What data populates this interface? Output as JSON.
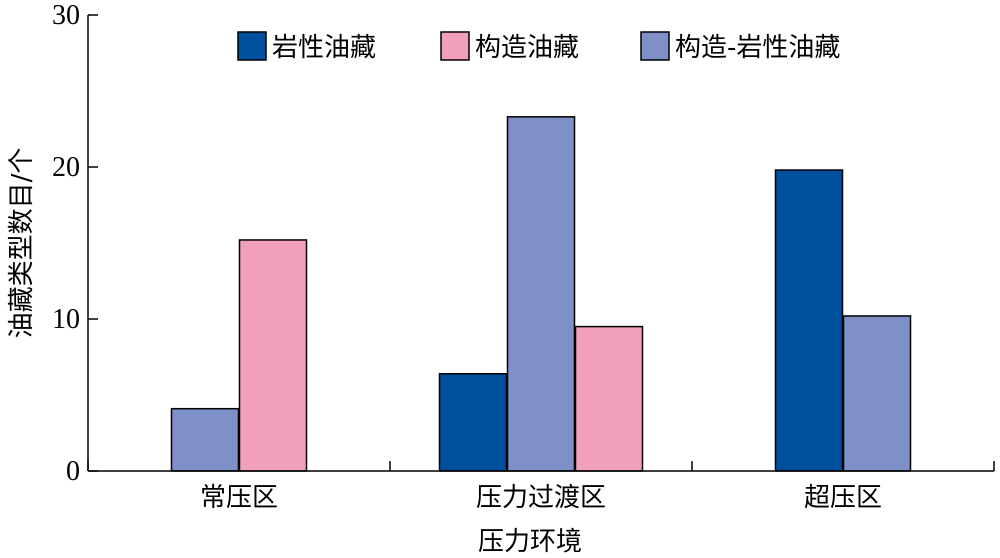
{
  "chart_data": {
    "type": "bar",
    "title": "",
    "xlabel": "压力环境",
    "ylabel": "油藏类型数目/个",
    "ylim": [
      0,
      30
    ],
    "yticks": [
      0,
      10,
      20,
      30
    ],
    "grid": false,
    "legend_position": "top",
    "categories": [
      "常压区",
      "压力过渡区",
      "超压区"
    ],
    "series": [
      {
        "name": "岩性油藏",
        "color": "#0050a0",
        "values": [
          null,
          6.4,
          19.8
        ]
      },
      {
        "name": "构造-岩性油藏",
        "color": "#7f90c8",
        "values": [
          4.1,
          23.3,
          10.2
        ]
      },
      {
        "name": "构造油藏",
        "color": "#f0a0ba",
        "values": [
          15.2,
          9.5,
          null
        ]
      }
    ],
    "legend_order": [
      "岩性油藏",
      "构造油藏",
      "构造-岩性油藏"
    ]
  }
}
